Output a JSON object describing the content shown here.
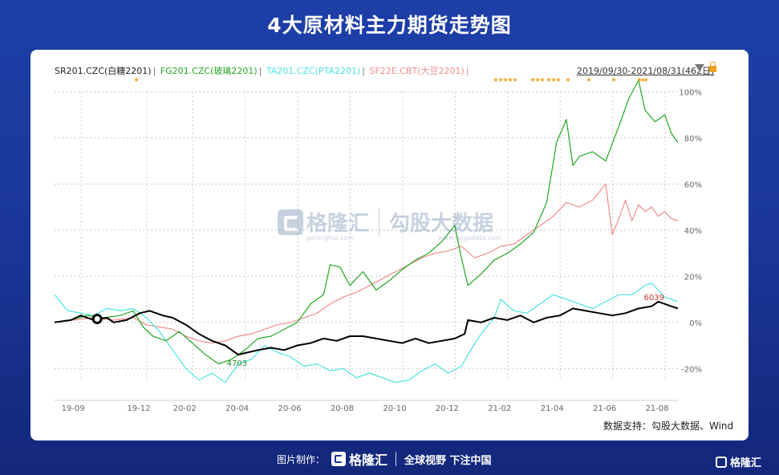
{
  "page": {
    "title": "4大原材料主力期货走势图",
    "source_note": "数据支持：勾股大数据、Wind",
    "range_label": "2019/09/30-2021/08/31(462日)",
    "watermark": {
      "brand_cn": "格隆汇",
      "brand_url": "gelonghui.com",
      "partner_cn": "勾股大数据",
      "partner_url": "www.gogudata.com"
    },
    "footer": {
      "made_by": "图片制作：",
      "brand_cn": "格隆汇",
      "slogan": "全球视野 下注中国"
    },
    "corner_brand": "格隆汇"
  },
  "chart_data": {
    "type": "line",
    "x_ticks": [
      "19-09",
      "19-12",
      "20-02",
      "20-04",
      "20-06",
      "20-08",
      "20-10",
      "20-12",
      "21-02",
      "21-04",
      "21-06",
      "21-08"
    ],
    "y_ticks": [
      "100%",
      "80%",
      "60%",
      "40%",
      "20%",
      "0%",
      "-20%"
    ],
    "ylim": [
      -0.3,
      1.05
    ],
    "grid": true,
    "legend_position": "top-left",
    "series": [
      {
        "name": "SR201.CZC(白糖2201)",
        "color": "#000000",
        "points": [
          [
            0,
            0.0
          ],
          [
            0.05,
            0.01
          ],
          [
            0.08,
            0.03
          ],
          [
            0.12,
            0.01
          ],
          [
            0.16,
            0.02
          ],
          [
            0.18,
            0.0
          ],
          [
            0.22,
            0.01
          ],
          [
            0.26,
            0.04
          ],
          [
            0.29,
            0.05
          ],
          [
            0.33,
            0.03
          ],
          [
            0.36,
            0.02
          ],
          [
            0.4,
            -0.01
          ],
          [
            0.44,
            -0.05
          ],
          [
            0.48,
            -0.08
          ],
          [
            0.52,
            -0.1
          ],
          [
            0.56,
            -0.14
          ],
          [
            0.59,
            -0.13
          ],
          [
            0.62,
            -0.12
          ],
          [
            0.66,
            -0.11
          ],
          [
            0.7,
            -0.12
          ],
          [
            0.74,
            -0.1
          ],
          [
            0.78,
            -0.09
          ],
          [
            0.82,
            -0.07
          ],
          [
            0.86,
            -0.08
          ],
          [
            0.9,
            -0.06
          ],
          [
            0.94,
            -0.06
          ],
          [
            0.98,
            -0.07
          ],
          [
            1.02,
            -0.08
          ],
          [
            1.06,
            -0.09
          ],
          [
            1.1,
            -0.07
          ],
          [
            1.14,
            -0.09
          ],
          [
            1.18,
            -0.08
          ],
          [
            1.22,
            -0.07
          ],
          [
            1.25,
            -0.05
          ],
          [
            1.26,
            0.01
          ],
          [
            1.3,
            0.0
          ],
          [
            1.34,
            0.02
          ],
          [
            1.38,
            0.01
          ],
          [
            1.42,
            0.03
          ],
          [
            1.46,
            0.0
          ],
          [
            1.5,
            0.02
          ],
          [
            1.54,
            0.03
          ],
          [
            1.58,
            0.06
          ],
          [
            1.62,
            0.05
          ],
          [
            1.66,
            0.04
          ],
          [
            1.7,
            0.03
          ],
          [
            1.74,
            0.04
          ],
          [
            1.78,
            0.06
          ],
          [
            1.82,
            0.07
          ],
          [
            1.84,
            0.09
          ],
          [
            1.86,
            0.08
          ],
          [
            1.88,
            0.07
          ],
          [
            1.9,
            0.06
          ]
        ],
        "x_domain": "normalized time 2019/09/30 (0) to 2021/08/31 (1.90)",
        "marks": [
          {
            "label": "4703",
            "x": 0.52,
            "y": -0.14
          },
          {
            "label": "6039",
            "x": 1.84,
            "y": 0.09
          }
        ]
      },
      {
        "name": "FG201.CZC(玻璃2201)",
        "color": "#22a822",
        "points": [
          [
            0,
            0.0
          ],
          [
            0.05,
            0.01
          ],
          [
            0.1,
            0.03
          ],
          [
            0.15,
            0.02
          ],
          [
            0.2,
            0.03
          ],
          [
            0.24,
            0.05
          ],
          [
            0.27,
            -0.02
          ],
          [
            0.3,
            -0.06
          ],
          [
            0.34,
            -0.08
          ],
          [
            0.38,
            -0.04
          ],
          [
            0.42,
            -0.09
          ],
          [
            0.46,
            -0.14
          ],
          [
            0.5,
            -0.18
          ],
          [
            0.54,
            -0.16
          ],
          [
            0.58,
            -0.12
          ],
          [
            0.62,
            -0.07
          ],
          [
            0.66,
            -0.06
          ],
          [
            0.7,
            -0.03
          ],
          [
            0.74,
            0.0
          ],
          [
            0.78,
            0.08
          ],
          [
            0.82,
            0.12
          ],
          [
            0.84,
            0.25
          ],
          [
            0.87,
            0.24
          ],
          [
            0.9,
            0.16
          ],
          [
            0.94,
            0.22
          ],
          [
            0.98,
            0.14
          ],
          [
            1.02,
            0.18
          ],
          [
            1.06,
            0.23
          ],
          [
            1.1,
            0.27
          ],
          [
            1.14,
            0.3
          ],
          [
            1.18,
            0.35
          ],
          [
            1.22,
            0.42
          ],
          [
            1.24,
            0.28
          ],
          [
            1.26,
            0.16
          ],
          [
            1.3,
            0.21
          ],
          [
            1.34,
            0.27
          ],
          [
            1.38,
            0.3
          ],
          [
            1.42,
            0.34
          ],
          [
            1.46,
            0.39
          ],
          [
            1.5,
            0.52
          ],
          [
            1.53,
            0.78
          ],
          [
            1.56,
            0.88
          ],
          [
            1.58,
            0.68
          ],
          [
            1.6,
            0.72
          ],
          [
            1.64,
            0.74
          ],
          [
            1.68,
            0.7
          ],
          [
            1.72,
            0.85
          ],
          [
            1.75,
            0.97
          ],
          [
            1.78,
            1.05
          ],
          [
            1.8,
            0.92
          ],
          [
            1.83,
            0.87
          ],
          [
            1.86,
            0.9
          ],
          [
            1.88,
            0.82
          ],
          [
            1.9,
            0.78
          ]
        ]
      },
      {
        "name": "TA201.CZC(PTA2201)",
        "color": "#4de3e3",
        "points": [
          [
            0,
            0.12
          ],
          [
            0.04,
            0.05
          ],
          [
            0.08,
            0.04
          ],
          [
            0.12,
            0.03
          ],
          [
            0.16,
            0.06
          ],
          [
            0.2,
            0.05
          ],
          [
            0.24,
            0.06
          ],
          [
            0.28,
            0.02
          ],
          [
            0.32,
            -0.04
          ],
          [
            0.36,
            -0.12
          ],
          [
            0.4,
            -0.2
          ],
          [
            0.44,
            -0.25
          ],
          [
            0.48,
            -0.22
          ],
          [
            0.52,
            -0.26
          ],
          [
            0.56,
            -0.18
          ],
          [
            0.6,
            -0.16
          ],
          [
            0.64,
            -0.1
          ],
          [
            0.68,
            -0.13
          ],
          [
            0.72,
            -0.15
          ],
          [
            0.76,
            -0.19
          ],
          [
            0.8,
            -0.18
          ],
          [
            0.84,
            -0.21
          ],
          [
            0.88,
            -0.2
          ],
          [
            0.92,
            -0.24
          ],
          [
            0.96,
            -0.22
          ],
          [
            1.0,
            -0.24
          ],
          [
            1.04,
            -0.26
          ],
          [
            1.08,
            -0.25
          ],
          [
            1.12,
            -0.21
          ],
          [
            1.16,
            -0.18
          ],
          [
            1.2,
            -0.22
          ],
          [
            1.24,
            -0.19
          ],
          [
            1.26,
            -0.14
          ],
          [
            1.3,
            -0.05
          ],
          [
            1.34,
            0.02
          ],
          [
            1.36,
            0.1
          ],
          [
            1.4,
            0.05
          ],
          [
            1.44,
            0.04
          ],
          [
            1.48,
            0.08
          ],
          [
            1.52,
            0.12
          ],
          [
            1.56,
            0.1
          ],
          [
            1.6,
            0.08
          ],
          [
            1.64,
            0.06
          ],
          [
            1.68,
            0.09
          ],
          [
            1.72,
            0.12
          ],
          [
            1.76,
            0.12
          ],
          [
            1.8,
            0.16
          ],
          [
            1.82,
            0.17
          ],
          [
            1.84,
            0.14
          ],
          [
            1.86,
            0.11
          ],
          [
            1.88,
            0.1
          ],
          [
            1.9,
            0.09
          ]
        ]
      },
      {
        "name": "SF22E.CBT(大豆2201)",
        "color": "#f08c8c",
        "points": [
          [
            0,
            0.0
          ],
          [
            0.06,
            0.01
          ],
          [
            0.12,
            0.02
          ],
          [
            0.18,
            0.01
          ],
          [
            0.24,
            0.02
          ],
          [
            0.28,
            -0.01
          ],
          [
            0.32,
            -0.02
          ],
          [
            0.36,
            -0.03
          ],
          [
            0.4,
            -0.06
          ],
          [
            0.44,
            -0.08
          ],
          [
            0.48,
            -0.09
          ],
          [
            0.52,
            -0.08
          ],
          [
            0.56,
            -0.06
          ],
          [
            0.6,
            -0.05
          ],
          [
            0.64,
            -0.03
          ],
          [
            0.68,
            -0.01
          ],
          [
            0.72,
            0.0
          ],
          [
            0.76,
            0.02
          ],
          [
            0.8,
            0.04
          ],
          [
            0.84,
            0.08
          ],
          [
            0.88,
            0.11
          ],
          [
            0.92,
            0.13
          ],
          [
            0.96,
            0.16
          ],
          [
            1.0,
            0.19
          ],
          [
            1.04,
            0.22
          ],
          [
            1.08,
            0.25
          ],
          [
            1.12,
            0.28
          ],
          [
            1.16,
            0.3
          ],
          [
            1.2,
            0.31
          ],
          [
            1.24,
            0.33
          ],
          [
            1.28,
            0.28
          ],
          [
            1.32,
            0.3
          ],
          [
            1.36,
            0.33
          ],
          [
            1.4,
            0.34
          ],
          [
            1.44,
            0.38
          ],
          [
            1.48,
            0.42
          ],
          [
            1.52,
            0.46
          ],
          [
            1.56,
            0.52
          ],
          [
            1.6,
            0.5
          ],
          [
            1.64,
            0.53
          ],
          [
            1.68,
            0.6
          ],
          [
            1.7,
            0.38
          ],
          [
            1.72,
            0.45
          ],
          [
            1.74,
            0.53
          ],
          [
            1.76,
            0.44
          ],
          [
            1.78,
            0.51
          ],
          [
            1.8,
            0.48
          ],
          [
            1.82,
            0.5
          ],
          [
            1.84,
            0.46
          ],
          [
            1.86,
            0.48
          ],
          [
            1.88,
            0.45
          ],
          [
            1.9,
            0.44
          ]
        ]
      }
    ],
    "star_marks_present": true
  }
}
